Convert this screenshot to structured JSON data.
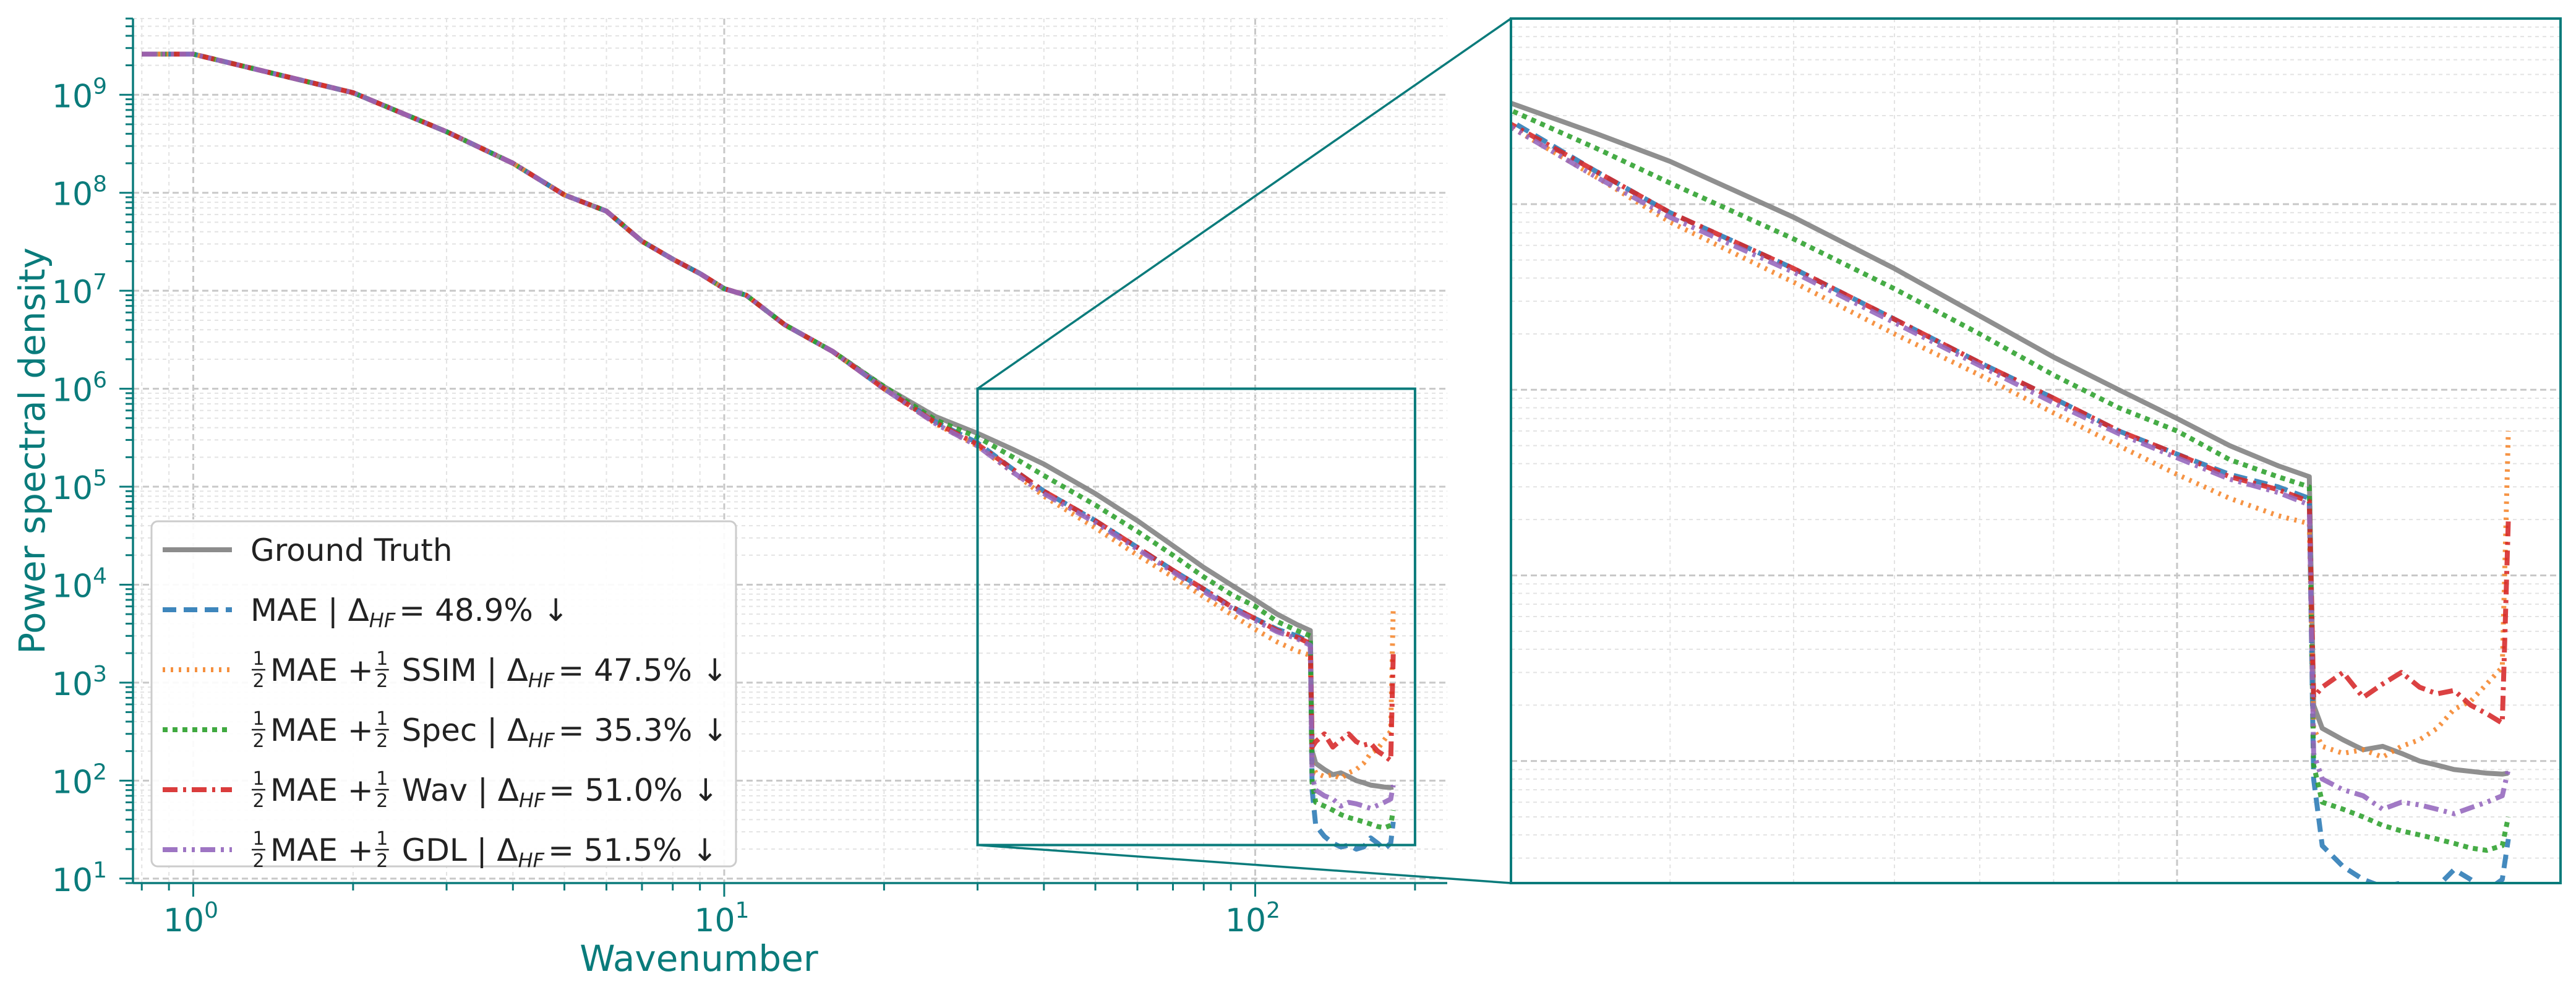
{
  "chart_data": [
    {
      "id": "main",
      "type": "line",
      "xlabel": "Wavenumber",
      "ylabel": "Power spectral density",
      "xscale": "log",
      "yscale": "log",
      "xlim": [
        0.77,
        230
      ],
      "ylim": [
        9,
        6000000000.0
      ],
      "xticks": [
        {
          "value": 1,
          "base": "10",
          "exp": "0"
        },
        {
          "value": 10,
          "base": "10",
          "exp": "1"
        },
        {
          "value": 100,
          "base": "10",
          "exp": "2"
        }
      ],
      "yticks": [
        {
          "value": 10,
          "base": "10",
          "exp": "1"
        },
        {
          "value": 100,
          "base": "10",
          "exp": "2"
        },
        {
          "value": 1000,
          "base": "10",
          "exp": "3"
        },
        {
          "value": 10000,
          "base": "10",
          "exp": "4"
        },
        {
          "value": 100000,
          "base": "10",
          "exp": "5"
        },
        {
          "value": 1000000,
          "base": "10",
          "exp": "6"
        },
        {
          "value": 10000000,
          "base": "10",
          "exp": "7"
        },
        {
          "value": 100000000,
          "base": "10",
          "exp": "8"
        },
        {
          "value": 1000000000,
          "base": "10",
          "exp": "9"
        }
      ],
      "grid": true,
      "legend_position": "lower-left",
      "x": [
        0.8,
        1,
        2,
        3,
        4,
        5,
        6,
        7,
        8,
        9,
        10,
        11,
        13,
        16,
        20,
        25,
        30,
        35,
        40,
        50,
        60,
        70,
        80,
        90,
        100,
        110,
        120,
        127,
        128,
        130,
        135,
        140,
        145,
        150,
        155,
        160,
        165,
        170,
        175,
        180,
        182
      ],
      "series": [
        {
          "name": "Ground Truth",
          "label_text": "Ground Truth",
          "color": "#808080",
          "dash": "solid",
          "values": [
            2600000000.0,
            2600000000.0,
            1050000000.0,
            420000000.0,
            200000000.0,
            95000000.0,
            65000000.0,
            32000000.0,
            21000000.0,
            15000000.0,
            10500000.0,
            9000000.0,
            4500000.0,
            2400000.0,
            1050000.0,
            520000.0,
            350000.0,
            240000.0,
            170000.0,
            85000.0,
            45000.0,
            25000.0,
            15000.0,
            10000.0,
            7000.0,
            5000.0,
            3900.0,
            3400.0,
            200,
            150,
            130,
            115,
            120,
            110,
            100,
            95,
            90,
            88,
            86,
            85,
            86
          ]
        },
        {
          "name": "MAE",
          "label_prefix": "MAE | ",
          "delta": "48.9% ↓",
          "color": "#2a7ab5",
          "dash": "22,12",
          "values": [
            2600000000.0,
            2600000000.0,
            1050000000.0,
            420000000.0,
            200000000.0,
            95000000.0,
            65000000.0,
            32000000.0,
            21000000.0,
            15000000.0,
            10500000.0,
            9000000.0,
            4500000.0,
            2400000.0,
            1000000.0,
            460000.0,
            280000.0,
            150000.0,
            90000.0,
            45000.0,
            24000.0,
            14000.0,
            9000.0,
            6000.0,
            4500.0,
            3500.0,
            3000.0,
            2600.0,
            80,
            35,
            27,
            23,
            21,
            22,
            20,
            21,
            26,
            23,
            20,
            23,
            38
          ]
        },
        {
          "name": "1/2 MAE + 1/2 SSIM",
          "label_prefix": "MAE + ",
          "label_suffix": "SSIM | ",
          "delta": "47.5% ↓",
          "color": "#f5852b",
          "dash": "4,9",
          "values": [
            2600000000.0,
            2600000000.0,
            1050000000.0,
            420000000.0,
            200000000.0,
            95000000.0,
            65000000.0,
            32000000.0,
            21000000.0,
            15000000.0,
            10500000.0,
            9000000.0,
            4500000.0,
            2400000.0,
            1000000.0,
            440000.0,
            260000.0,
            140000.0,
            80000.0,
            38000.0,
            20000.0,
            12000.0,
            7500.0,
            5000.0,
            3500.0,
            2600.0,
            2100.0,
            1900.0,
            150,
            120,
            110,
            115,
            105,
            120,
            130,
            150,
            190,
            210,
            260,
            320,
            6000
          ]
        },
        {
          "name": "1/2 MAE + 1/2 Spec",
          "label_prefix": "MAE + ",
          "label_suffix": "Spec | ",
          "delta": "35.3% ↓",
          "color": "#2ca02c",
          "dash": "8,8",
          "values": [
            2600000000.0,
            2600000000.0,
            1050000000.0,
            420000000.0,
            200000000.0,
            95000000.0,
            65000000.0,
            32000000.0,
            21000000.0,
            15000000.0,
            10500000.0,
            9000000.0,
            4500000.0,
            2400000.0,
            1050000.0,
            480000.0,
            320000.0,
            200000.0,
            130000.0,
            65000.0,
            35000.0,
            20000.0,
            12000.0,
            8000.0,
            6000.0,
            4200.0,
            3400.0,
            3000.0,
            95,
            60,
            55,
            50,
            45,
            42,
            40,
            38,
            36,
            34,
            33,
            35,
            50
          ]
        },
        {
          "name": "1/2 MAE + 1/2 Wav",
          "label_prefix": "MAE + ",
          "label_suffix": "Wav | ",
          "delta": "51.0% ↓",
          "color": "#d62728",
          "dash": "24,9,5,9",
          "values": [
            2600000000.0,
            2600000000.0,
            1050000000.0,
            420000000.0,
            200000000.0,
            95000000.0,
            65000000.0,
            32000000.0,
            21000000.0,
            15000000.0,
            10500000.0,
            9000000.0,
            4500000.0,
            2400000.0,
            1000000.0,
            450000.0,
            270000.0,
            150000.0,
            90000.0,
            45000.0,
            24000.0,
            14000.0,
            9000.0,
            6000.0,
            4500.0,
            3400.0,
            2900.0,
            2500.0,
            220,
            250,
            300,
            220,
            260,
            300,
            250,
            230,
            240,
            200,
            180,
            160,
            2000
          ]
        },
        {
          "name": "1/2 MAE + 1/2 GDL",
          "label_prefix": "MAE + ",
          "label_suffix": "GDL | ",
          "delta": "51.5% ↓",
          "color": "#9467bd",
          "dash": "24,9,5,9,5,9",
          "values": [
            2600000000.0,
            2600000000.0,
            1050000000.0,
            420000000.0,
            200000000.0,
            95000000.0,
            65000000.0,
            32000000.0,
            21000000.0,
            15000000.0,
            10500000.0,
            9000000.0,
            4500000.0,
            2400000.0,
            1000000.0,
            440000.0,
            260000.0,
            140000.0,
            85000.0,
            43000.0,
            23000.0,
            13500.0,
            8500.0,
            5800.0,
            4300.0,
            3300.0,
            2800.0,
            2400.0,
            110,
            80,
            70,
            65,
            55,
            60,
            58,
            55,
            52,
            56,
            60,
            65,
            90
          ]
        }
      ],
      "legend_delta_label": "Δ",
      "legend_delta_sub": "HF",
      "legend_eq": "=",
      "frac_num": "1",
      "frac_den": "2"
    },
    {
      "id": "inset",
      "type": "line",
      "description_of_view": "zoom of main chart",
      "xscale": "log",
      "yscale": "log",
      "xlim": [
        30,
        200
      ],
      "ylim": [
        22,
        1000000.0
      ],
      "grid": true
    }
  ]
}
